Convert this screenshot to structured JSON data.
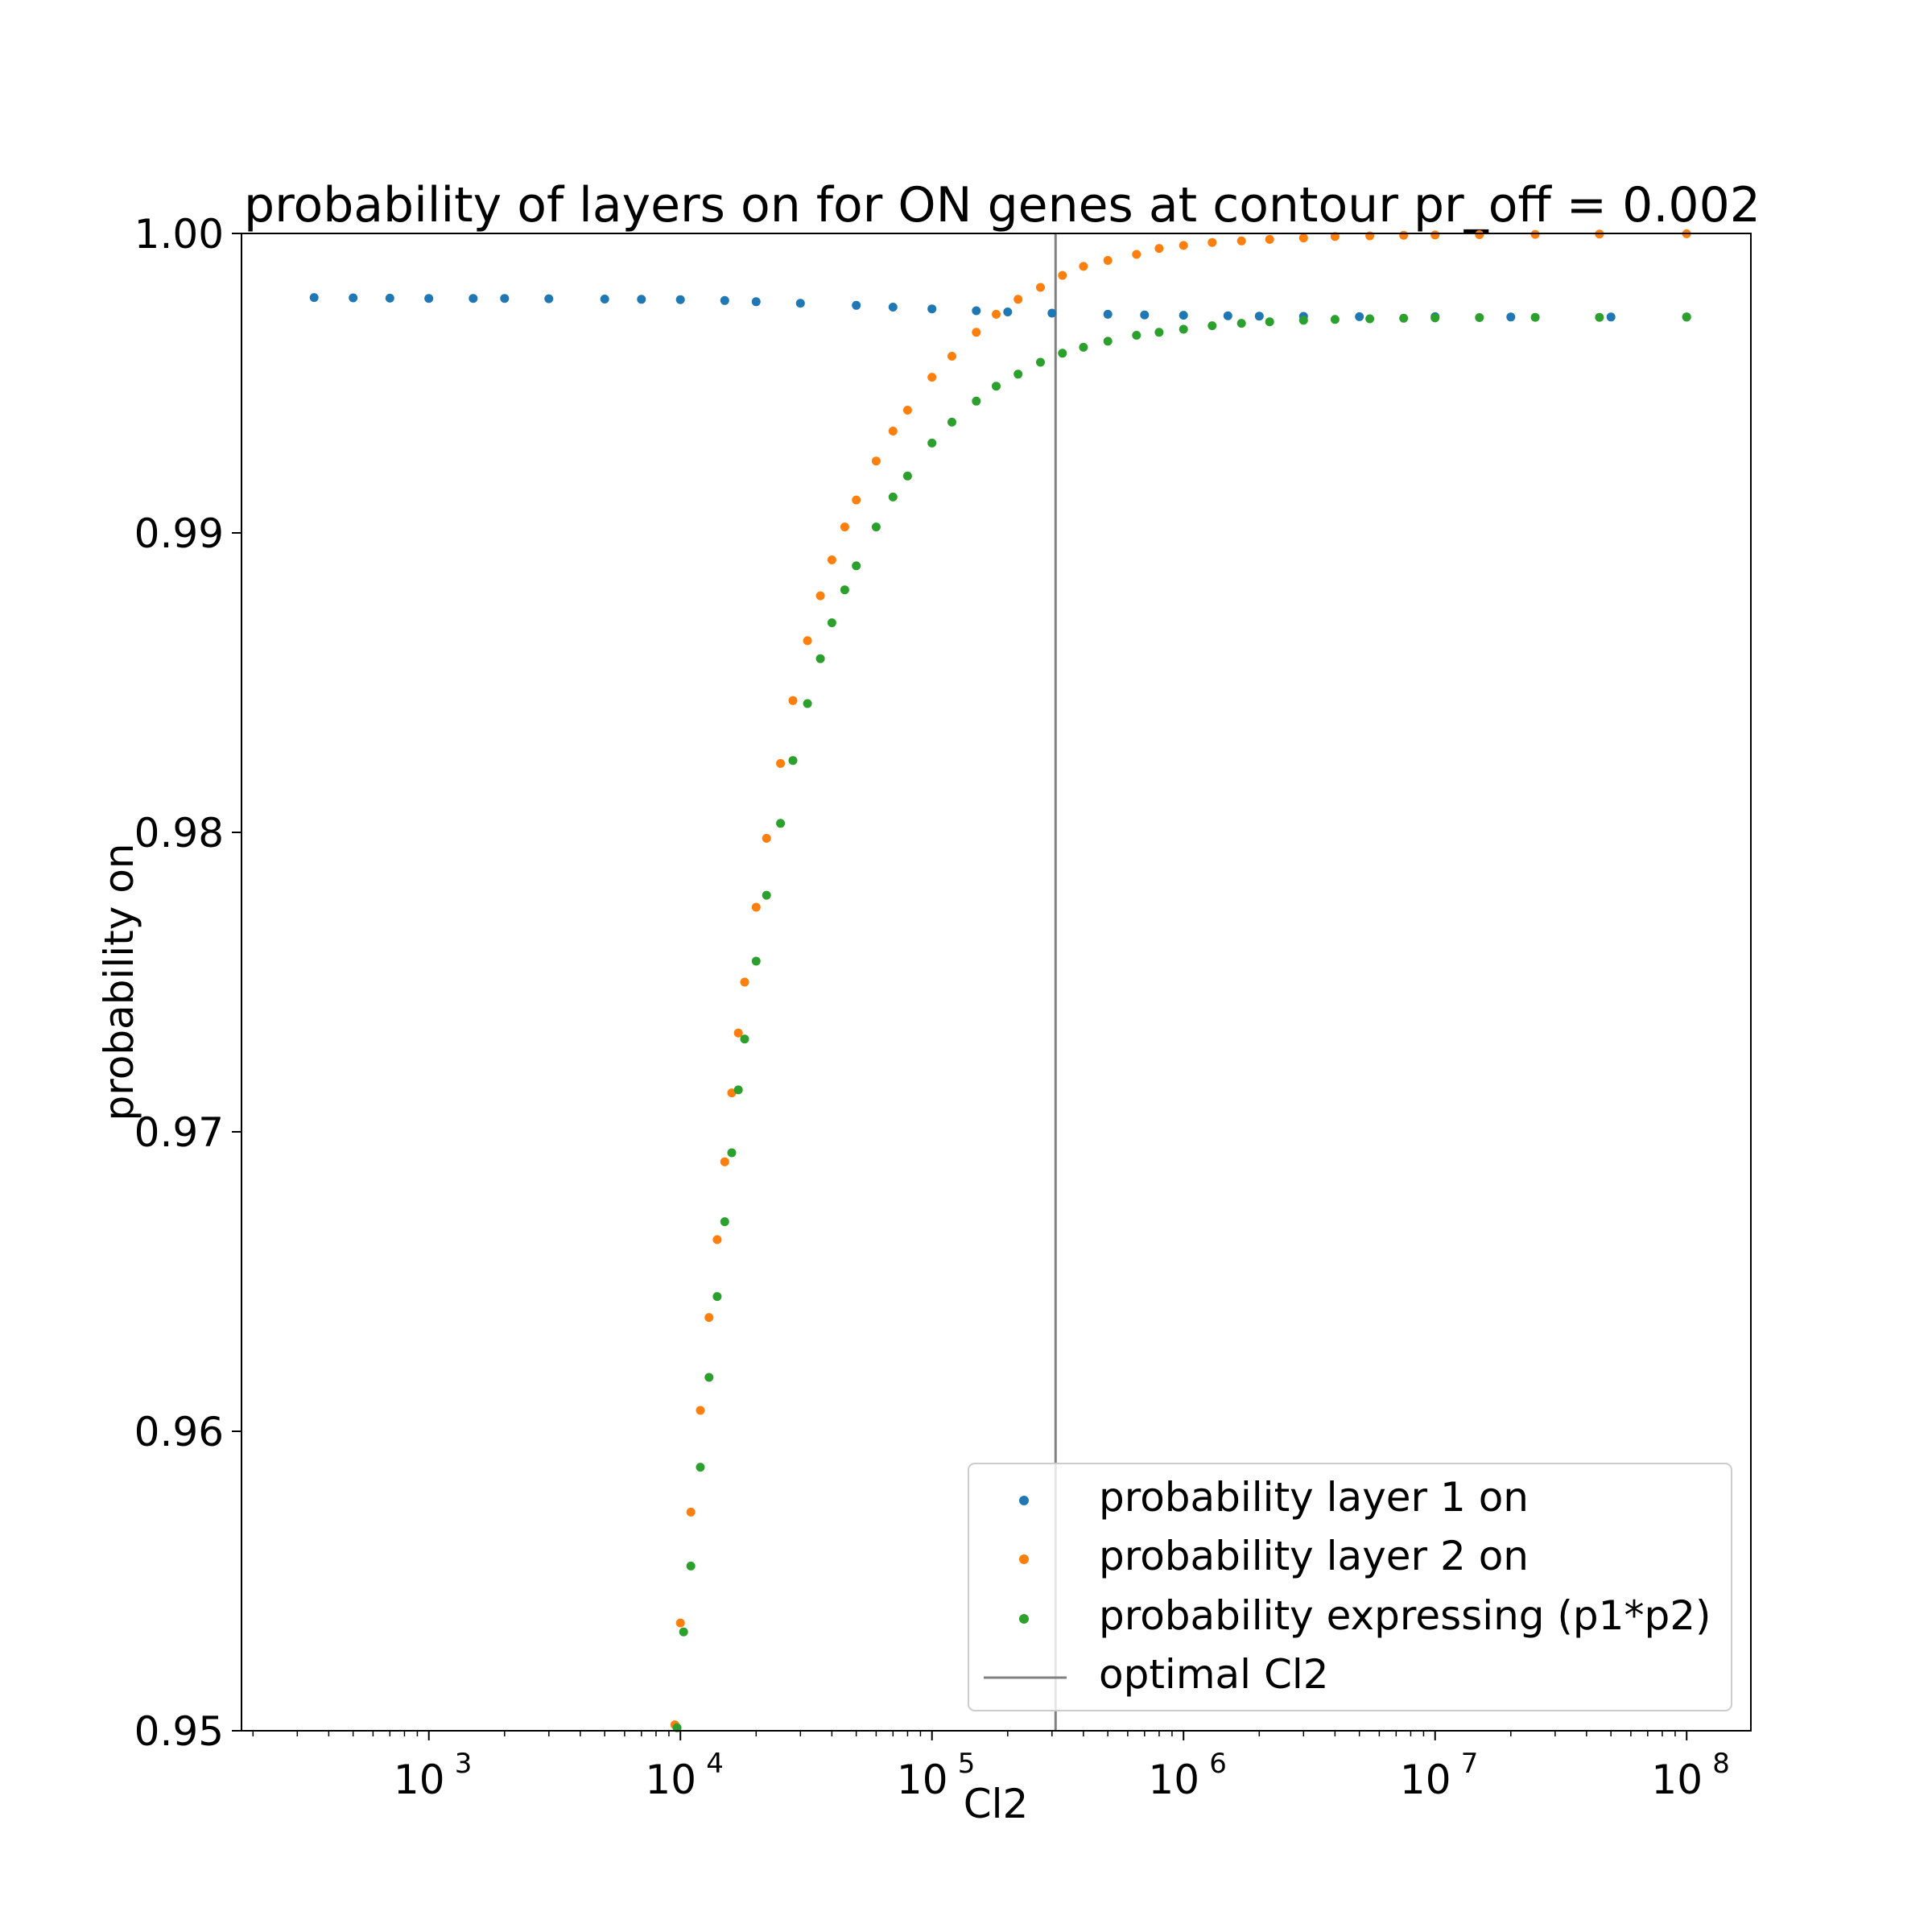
{
  "chart_data": {
    "type": "scatter",
    "title": "probability of layers on for ON genes at contour pr_off = 0.002",
    "xlabel": "Cl2",
    "ylabel": "probability on",
    "xscale": "log",
    "xlim": [
      180,
      180000000
    ],
    "ylim": [
      0.95,
      1.0
    ],
    "x_ticks": [
      {
        "value": 1000,
        "base": "10",
        "exp": "3"
      },
      {
        "value": 10000,
        "base": "10",
        "exp": "4"
      },
      {
        "value": 100000,
        "base": "10",
        "exp": "5"
      },
      {
        "value": 1000000,
        "base": "10",
        "exp": "6"
      },
      {
        "value": 10000000,
        "base": "10",
        "exp": "7"
      },
      {
        "value": 100000000,
        "base": "10",
        "exp": "8"
      }
    ],
    "y_ticks": [
      {
        "value": 0.95,
        "label": "0.95"
      },
      {
        "value": 0.96,
        "label": "0.96"
      },
      {
        "value": 0.97,
        "label": "0.97"
      },
      {
        "value": 0.98,
        "label": "0.98"
      },
      {
        "value": 0.99,
        "label": "0.99"
      },
      {
        "value": 1.0,
        "label": "1.00"
      }
    ],
    "grid": false,
    "legend_position": "lower right",
    "series": [
      {
        "name": "probability layer 1 on",
        "color": "#1f77b4",
        "x": [
          350,
          500,
          700,
          1000,
          1500,
          2000,
          3000,
          5000,
          7000,
          10000,
          15000,
          20000,
          30000,
          50000,
          70000,
          100000,
          150000,
          200000,
          300000,
          500000,
          700000,
          1000000,
          1500000,
          2000000,
          3000000,
          5000000,
          10000000,
          20000000,
          50000000,
          100000000
        ],
        "y": [
          0.99786,
          0.99785,
          0.99784,
          0.99783,
          0.99783,
          0.99783,
          0.99782,
          0.99781,
          0.9978,
          0.99779,
          0.99776,
          0.99772,
          0.99767,
          0.9976,
          0.99754,
          0.99748,
          0.99742,
          0.99738,
          0.99734,
          0.9973,
          0.99728,
          0.99727,
          0.99725,
          0.99724,
          0.99723,
          0.99722,
          0.99722,
          0.99721,
          0.99721,
          0.99721
        ]
      },
      {
        "name": "probability layer 2 on",
        "color": "#ff7f0e",
        "x": [
          9500,
          10000,
          11000,
          12000,
          13000,
          14000,
          15000,
          16000,
          17000,
          18000,
          20000,
          22000,
          25000,
          28000,
          32000,
          36000,
          40000,
          45000,
          50000,
          60000,
          70000,
          80000,
          100000,
          120000,
          150000,
          180000,
          220000,
          270000,
          330000,
          400000,
          500000,
          650000,
          800000,
          1000000,
          1300000,
          1700000,
          2200000,
          3000000,
          4000000,
          5500000,
          7500000,
          10000000,
          15000000,
          25000000,
          45000000,
          100000000
        ],
        "y": [
          0.9502,
          0.9536,
          0.9573,
          0.9607,
          0.9638,
          0.9664,
          0.969,
          0.9713,
          0.9733,
          0.975,
          0.9775,
          0.9798,
          0.9823,
          0.9844,
          0.9864,
          0.9879,
          0.9891,
          0.9902,
          0.9911,
          0.9924,
          0.9934,
          0.9941,
          0.9952,
          0.9959,
          0.9967,
          0.9973,
          0.9978,
          0.9982,
          0.9986,
          0.9989,
          0.9991,
          0.9993,
          0.9995,
          0.9996,
          0.9997,
          0.99975,
          0.9998,
          0.99985,
          0.9999,
          0.99992,
          0.99994,
          0.99995,
          0.99996,
          0.99997,
          0.99998,
          0.99999
        ]
      },
      {
        "name": "probability expressing (p1*p2)",
        "color": "#2ca02c",
        "x": [
          9700,
          10300,
          11000,
          12000,
          13000,
          14000,
          15000,
          16000,
          17000,
          18000,
          20000,
          22000,
          25000,
          28000,
          32000,
          36000,
          40000,
          45000,
          50000,
          60000,
          70000,
          80000,
          100000,
          120000,
          150000,
          180000,
          220000,
          270000,
          330000,
          400000,
          500000,
          650000,
          800000,
          1000000,
          1300000,
          1700000,
          2200000,
          3000000,
          4000000,
          5500000,
          7500000,
          10000000,
          15000000,
          25000000,
          45000000,
          100000000
        ],
        "y": [
          0.9501,
          0.9533,
          0.9555,
          0.9588,
          0.9618,
          0.9645,
          0.967,
          0.9693,
          0.9714,
          0.9731,
          0.9757,
          0.9779,
          0.9803,
          0.9824,
          0.9843,
          0.9858,
          0.987,
          0.9881,
          0.9889,
          0.9902,
          0.9912,
          0.9919,
          0.993,
          0.9937,
          0.9944,
          0.9949,
          0.9953,
          0.9957,
          0.996,
          0.9962,
          0.9964,
          0.9966,
          0.9967,
          0.9968,
          0.99692,
          0.997,
          0.99705,
          0.9971,
          0.99713,
          0.99715,
          0.99717,
          0.99718,
          0.99719,
          0.9972,
          0.9972,
          0.99721
        ]
      }
    ],
    "reference_line": {
      "name": "optimal Cl2",
      "x": 310000,
      "color": "#808080"
    }
  }
}
